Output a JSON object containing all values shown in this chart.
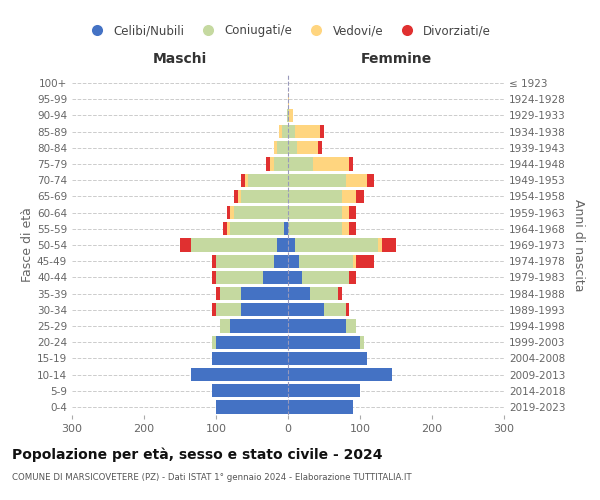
{
  "age_groups": [
    "0-4",
    "5-9",
    "10-14",
    "15-19",
    "20-24",
    "25-29",
    "30-34",
    "35-39",
    "40-44",
    "45-49",
    "50-54",
    "55-59",
    "60-64",
    "65-69",
    "70-74",
    "75-79",
    "80-84",
    "85-89",
    "90-94",
    "95-99",
    "100+"
  ],
  "birth_years": [
    "2019-2023",
    "2014-2018",
    "2009-2013",
    "2004-2008",
    "1999-2003",
    "1994-1998",
    "1989-1993",
    "1984-1988",
    "1979-1983",
    "1974-1978",
    "1969-1973",
    "1964-1968",
    "1959-1963",
    "1954-1958",
    "1949-1953",
    "1944-1948",
    "1939-1943",
    "1934-1938",
    "1929-1933",
    "1924-1928",
    "≤ 1923"
  ],
  "male": {
    "celibi": [
      100,
      105,
      135,
      105,
      100,
      80,
      65,
      65,
      35,
      20,
      15,
      5,
      0,
      0,
      0,
      0,
      0,
      0,
      0,
      0,
      0
    ],
    "coniugati": [
      0,
      0,
      0,
      0,
      5,
      15,
      35,
      30,
      65,
      80,
      120,
      75,
      75,
      65,
      55,
      20,
      15,
      8,
      2,
      0,
      0
    ],
    "vedovi": [
      0,
      0,
      0,
      0,
      0,
      0,
      0,
      0,
      0,
      0,
      0,
      5,
      5,
      5,
      5,
      5,
      5,
      5,
      0,
      0,
      0
    ],
    "divorziati": [
      0,
      0,
      0,
      0,
      0,
      0,
      5,
      5,
      5,
      5,
      15,
      5,
      5,
      5,
      5,
      5,
      0,
      0,
      0,
      0,
      0
    ]
  },
  "female": {
    "nubili": [
      90,
      100,
      145,
      110,
      100,
      80,
      50,
      30,
      20,
      15,
      10,
      0,
      0,
      0,
      0,
      0,
      0,
      0,
      0,
      0,
      0
    ],
    "coniugate": [
      0,
      0,
      0,
      0,
      5,
      15,
      30,
      40,
      65,
      75,
      115,
      75,
      75,
      75,
      80,
      35,
      12,
      10,
      2,
      0,
      0
    ],
    "vedove": [
      0,
      0,
      0,
      0,
      0,
      0,
      0,
      0,
      0,
      5,
      5,
      10,
      10,
      20,
      30,
      50,
      30,
      35,
      5,
      2,
      0
    ],
    "divorziate": [
      0,
      0,
      0,
      0,
      0,
      0,
      5,
      5,
      10,
      25,
      20,
      10,
      10,
      10,
      10,
      5,
      5,
      5,
      0,
      0,
      0
    ]
  },
  "colors": {
    "celibi": "#4472C4",
    "coniugati": "#C5D9A0",
    "vedovi": "#FFD57F",
    "divorziati": "#E03030"
  },
  "xlim": 300,
  "title": "Popolazione per età, sesso e stato civile - 2024",
  "subtitle": "COMUNE DI MARSICOVETERE (PZ) - Dati ISTAT 1° gennaio 2024 - Elaborazione TUTTITALIA.IT",
  "ylabel_left": "Fasce di età",
  "ylabel_right": "Anni di nascita",
  "xlabel_left": "Maschi",
  "xlabel_right": "Femmine",
  "legend_labels": [
    "Celibi/Nubili",
    "Coniugati/e",
    "Vedovi/e",
    "Divorziati/e"
  ],
  "background_color": "#ffffff",
  "grid_color": "#cccccc"
}
